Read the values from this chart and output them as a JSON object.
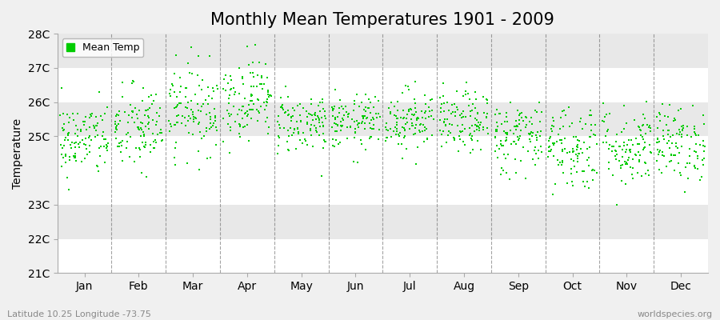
{
  "title": "Monthly Mean Temperatures 1901 - 2009",
  "ylabel": "Temperature",
  "subtitle_left": "Latitude 10.25 Longitude -73.75",
  "subtitle_right": "worldspecies.org",
  "legend_label": "Mean Temp",
  "marker_color": "#00cc00",
  "marker": "s",
  "marker_size": 4,
  "ylim": [
    21.0,
    28.0
  ],
  "yticks": [
    21,
    22,
    23,
    25,
    26,
    27,
    28
  ],
  "ytick_labels": [
    "21C",
    "22C",
    "23C",
    "25C",
    "26C",
    "27C",
    "28C"
  ],
  "months": [
    "Jan",
    "Feb",
    "Mar",
    "Apr",
    "May",
    "Jun",
    "Jul",
    "Aug",
    "Sep",
    "Oct",
    "Nov",
    "Dec"
  ],
  "background_color": "#f0f0f0",
  "band_colors": [
    "#ffffff",
    "#e8e8e8"
  ],
  "month_means": [
    24.9,
    25.2,
    25.8,
    26.1,
    25.4,
    25.4,
    25.5,
    25.4,
    25.0,
    24.7,
    24.7,
    24.8
  ],
  "month_stds": [
    0.55,
    0.65,
    0.65,
    0.6,
    0.45,
    0.4,
    0.45,
    0.45,
    0.55,
    0.65,
    0.6,
    0.55
  ],
  "n_years": 109,
  "grid_color": "#666666",
  "title_fontsize": 15,
  "axis_fontsize": 9,
  "label_fontsize": 10,
  "tick_fontsize": 10
}
